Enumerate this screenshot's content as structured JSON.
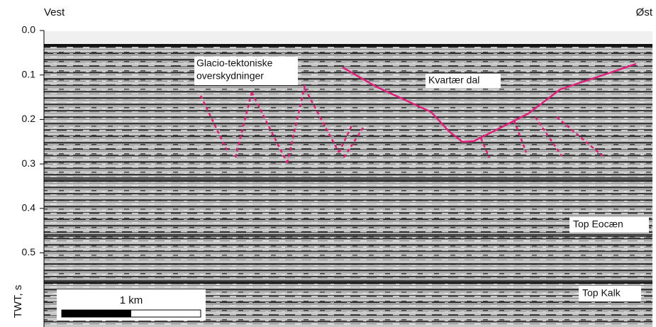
{
  "header": {
    "left": "Vest",
    "right": "Øst"
  },
  "axis": {
    "label": "TWT, s",
    "ticks": [
      {
        "value": 0,
        "label": "0.0"
      },
      0.1,
      0.2,
      0.3,
      0.4,
      0.5
    ]
  },
  "annotations": {
    "glacio_line1": "Glacio-tektoniske",
    "glacio_line2": "overskydninger",
    "valley": "Kvartær dal",
    "top_eocene": "Top Eocæn",
    "top_chalk": "Top Kalk"
  },
  "scale_bar": {
    "label": "1 km"
  }
}
